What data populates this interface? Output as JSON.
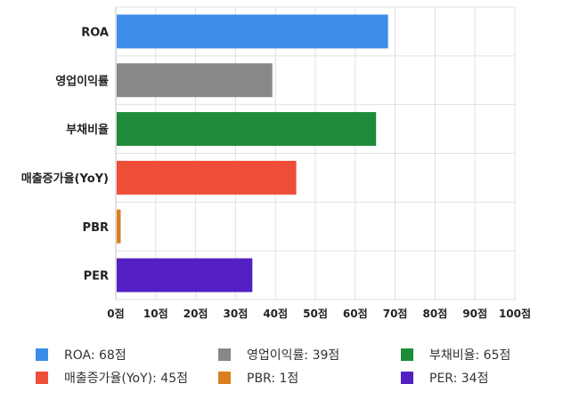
{
  "chart_data": {
    "type": "bar",
    "orientation": "horizontal",
    "categories": [
      "ROA",
      "영업이익률",
      "부채비율",
      "매출증가율(YoY)",
      "PBR",
      "PER"
    ],
    "values": [
      68,
      39,
      65,
      45,
      1,
      34
    ],
    "colors": [
      "#3b8de8",
      "#888888",
      "#1e8c3a",
      "#ee4e38",
      "#d97f1e",
      "#5420c4"
    ],
    "xlim": [
      0,
      100
    ],
    "xticks": [
      0,
      10,
      20,
      30,
      40,
      50,
      60,
      70,
      80,
      90,
      100
    ],
    "tick_suffix": "점",
    "grid": true,
    "legend_position": "bottom",
    "legend": [
      "ROA: 68점",
      "영업이익률: 39점",
      "부채비율: 65점",
      "매출증가율(YoY): 45점",
      "PBR: 1점",
      "PER: 34점"
    ]
  }
}
